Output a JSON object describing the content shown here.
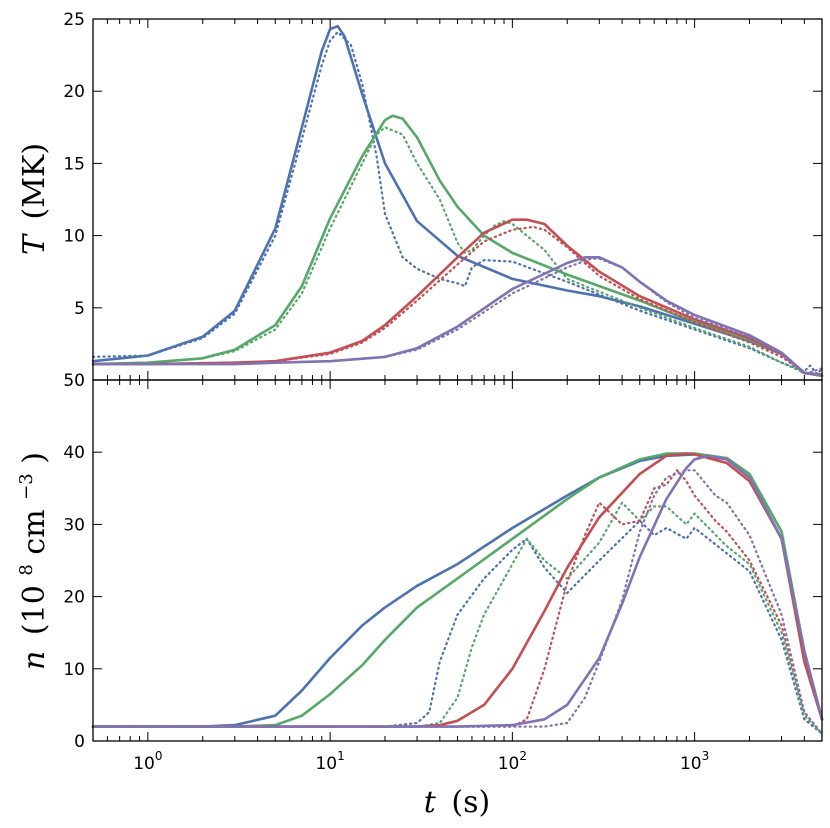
{
  "chart_data": [
    {
      "type": "line",
      "panel": "top",
      "ylabel": {
        "var": "T",
        "unit": "(MK)"
      },
      "xscale": "log",
      "xlim": [
        0.5,
        5000
      ],
      "ylim": [
        0,
        25
      ],
      "yticks": [
        "5",
        "10",
        "15",
        "20",
        "25"
      ],
      "series": [
        {
          "name": "blue solid",
          "color": "#4c72b0",
          "style": "solid",
          "x": [
            0.5,
            1,
            2,
            3,
            5,
            7,
            9,
            10,
            11,
            12,
            15,
            20,
            30,
            50,
            100,
            200,
            300,
            500,
            1000,
            2000,
            3000,
            4000,
            5000
          ],
          "y": [
            1.3,
            1.7,
            3.0,
            4.8,
            10.5,
            17.5,
            22.8,
            24.3,
            24.5,
            23.8,
            19.8,
            15.0,
            11.0,
            8.6,
            7.0,
            6.2,
            5.8,
            5.1,
            3.9,
            2.7,
            1.8,
            0.5,
            0.3
          ]
        },
        {
          "name": "blue dotted",
          "color": "#4c72b0",
          "style": "dotted",
          "x": [
            0.5,
            1,
            2,
            3,
            5,
            7,
            9,
            10,
            11,
            13,
            15,
            18,
            20,
            25,
            30,
            40,
            50,
            55,
            60,
            70,
            100,
            200,
            500,
            1000,
            2000,
            3000,
            4000,
            4300,
            4700,
            5000
          ],
          "y": [
            1.6,
            1.7,
            2.9,
            4.6,
            10.0,
            16.7,
            21.8,
            23.5,
            24.1,
            23.2,
            20.5,
            15.5,
            11.5,
            8.5,
            7.7,
            7.0,
            6.7,
            6.5,
            7.8,
            8.3,
            8.2,
            6.8,
            4.8,
            3.5,
            2.2,
            1.2,
            0.6,
            1.0,
            0.4,
            0.8
          ]
        },
        {
          "name": "green solid",
          "color": "#55a868",
          "style": "solid",
          "x": [
            0.5,
            1,
            2,
            3,
            5,
            7,
            10,
            15,
            20,
            22,
            25,
            30,
            40,
            50,
            70,
            100,
            200,
            500,
            1000,
            2000,
            3000,
            4000,
            5000
          ],
          "y": [
            1.1,
            1.2,
            1.5,
            2.1,
            3.8,
            6.5,
            11.2,
            15.5,
            18.0,
            18.3,
            18.1,
            16.8,
            13.8,
            12.0,
            10.0,
            8.8,
            7.3,
            5.5,
            4.0,
            2.8,
            1.8,
            0.5,
            0.3
          ]
        },
        {
          "name": "green dotted",
          "color": "#55a868",
          "style": "dotted",
          "x": [
            0.5,
            1,
            2,
            3,
            5,
            7,
            10,
            15,
            18,
            20,
            25,
            30,
            40,
            50,
            55,
            60,
            70,
            80,
            90,
            100,
            150,
            200,
            500,
            1000,
            2000,
            3000,
            4000,
            5000
          ],
          "y": [
            1.1,
            1.2,
            1.5,
            2.0,
            3.5,
            6.0,
            10.5,
            15.0,
            17.0,
            17.5,
            17.0,
            15.0,
            12.5,
            9.5,
            8.8,
            9.0,
            10.0,
            10.7,
            11.0,
            10.8,
            9.0,
            7.0,
            5.0,
            3.6,
            2.3,
            1.2,
            0.5,
            0.4
          ]
        },
        {
          "name": "red solid",
          "color": "#c44e52",
          "style": "solid",
          "x": [
            0.5,
            1,
            3,
            5,
            10,
            15,
            20,
            30,
            50,
            70,
            100,
            120,
            150,
            200,
            300,
            500,
            1000,
            2000,
            3000,
            4000,
            5000
          ],
          "y": [
            1.1,
            1.1,
            1.2,
            1.3,
            1.9,
            2.7,
            3.8,
            5.8,
            8.5,
            10.2,
            11.1,
            11.1,
            10.8,
            9.3,
            7.5,
            5.8,
            4.2,
            2.9,
            1.8,
            0.5,
            0.3
          ]
        },
        {
          "name": "red dotted",
          "color": "#c44e52",
          "style": "dotted",
          "x": [
            0.5,
            1,
            3,
            5,
            10,
            15,
            20,
            30,
            50,
            70,
            100,
            130,
            150,
            200,
            300,
            500,
            1000,
            2000,
            3000,
            4000,
            5000
          ],
          "y": [
            1.1,
            1.1,
            1.2,
            1.3,
            1.8,
            2.6,
            3.6,
            5.5,
            8.0,
            9.6,
            10.4,
            10.6,
            10.4,
            9.2,
            7.2,
            5.6,
            4.0,
            2.6,
            1.6,
            0.5,
            0.4
          ]
        },
        {
          "name": "purple solid",
          "color": "#8172b2",
          "style": "solid",
          "x": [
            0.5,
            1,
            3,
            5,
            10,
            20,
            30,
            50,
            100,
            200,
            250,
            300,
            400,
            500,
            700,
            1000,
            2000,
            3000,
            4000,
            5000
          ],
          "y": [
            1.1,
            1.1,
            1.1,
            1.2,
            1.3,
            1.6,
            2.2,
            3.7,
            6.3,
            8.1,
            8.5,
            8.5,
            7.8,
            6.8,
            5.5,
            4.5,
            3.1,
            1.9,
            0.5,
            0.3
          ]
        },
        {
          "name": "purple dotted",
          "color": "#8172b2",
          "style": "dotted",
          "x": [
            0.5,
            1,
            3,
            5,
            10,
            20,
            30,
            50,
            100,
            200,
            270,
            300,
            400,
            500,
            700,
            1000,
            2000,
            3000,
            4000,
            5000
          ],
          "y": [
            1.1,
            1.1,
            1.1,
            1.2,
            1.3,
            1.6,
            2.1,
            3.5,
            6.0,
            7.8,
            8.4,
            8.4,
            7.8,
            6.8,
            5.4,
            4.3,
            3.0,
            1.8,
            0.4,
            0.8
          ]
        }
      ]
    },
    {
      "type": "line",
      "panel": "bottom",
      "ylabel": {
        "var": "n",
        "prefix": "(10",
        "exp1": "8",
        "unit": " cm",
        "exp2": "−3",
        "suffix": ")"
      },
      "xlabel": {
        "var": "t",
        "unit": "(s)"
      },
      "xscale": "log",
      "xlim": [
        0.5,
        5000
      ],
      "ylim": [
        0,
        50
      ],
      "yticks": [
        "0",
        "10",
        "20",
        "30",
        "40",
        "50"
      ],
      "xticks": [
        {
          "base": "10",
          "exp": "0",
          "value": 1
        },
        {
          "base": "10",
          "exp": "1",
          "value": 10
        },
        {
          "base": "10",
          "exp": "2",
          "value": 100
        },
        {
          "base": "10",
          "exp": "3",
          "value": 1000
        }
      ],
      "series": [
        {
          "name": "blue solid",
          "color": "#4c72b0",
          "style": "solid",
          "x": [
            0.5,
            1,
            2,
            3,
            5,
            7,
            10,
            15,
            20,
            30,
            50,
            100,
            200,
            300,
            500,
            700,
            1000,
            1500,
            2000,
            3000,
            4000,
            5000
          ],
          "y": [
            2,
            2,
            2,
            2.2,
            3.5,
            7.0,
            11.5,
            16.0,
            18.5,
            21.5,
            24.5,
            29.5,
            34.0,
            36.5,
            38.8,
            39.5,
            39.7,
            39.0,
            36.5,
            28.0,
            12.0,
            3.0
          ]
        },
        {
          "name": "blue dotted",
          "color": "#4c72b0",
          "style": "dotted",
          "x": [
            0.5,
            5,
            10,
            20,
            30,
            35,
            40,
            50,
            70,
            100,
            120,
            150,
            200,
            300,
            500,
            600,
            700,
            900,
            1000,
            1500,
            2000,
            3000,
            4000,
            5000
          ],
          "y": [
            2,
            2,
            2,
            2,
            2.5,
            4,
            11,
            17.5,
            22.5,
            26.5,
            28.0,
            24.0,
            20.5,
            25.0,
            30.5,
            28.5,
            29.5,
            28.0,
            29.5,
            26.0,
            23.5,
            14.0,
            3.0,
            1.0
          ]
        },
        {
          "name": "green solid",
          "color": "#55a868",
          "style": "solid",
          "x": [
            0.5,
            1,
            3,
            5,
            7,
            10,
            15,
            20,
            30,
            50,
            100,
            200,
            300,
            500,
            700,
            1000,
            1500,
            2000,
            3000,
            4000,
            5000
          ],
          "y": [
            2,
            2,
            2,
            2.2,
            3.5,
            6.5,
            10.5,
            14.0,
            18.5,
            22.5,
            28.0,
            33.5,
            36.5,
            39.0,
            39.8,
            39.8,
            39.2,
            37.0,
            29.0,
            12.5,
            3.0
          ]
        },
        {
          "name": "green dotted",
          "color": "#55a868",
          "style": "dotted",
          "x": [
            0.5,
            10,
            30,
            40,
            50,
            60,
            70,
            100,
            120,
            150,
            200,
            300,
            400,
            500,
            600,
            700,
            900,
            1000,
            1500,
            2000,
            3000,
            4000,
            5000
          ],
          "y": [
            2,
            2,
            2,
            2.5,
            6,
            13,
            17.5,
            24.5,
            28.0,
            25.0,
            22.5,
            27.5,
            33.0,
            30.5,
            32.5,
            32.5,
            30.0,
            31.5,
            27.0,
            24.5,
            15.0,
            3.5,
            1.0
          ]
        },
        {
          "name": "red solid",
          "color": "#c44e52",
          "style": "solid",
          "x": [
            0.5,
            10,
            30,
            40,
            50,
            70,
            100,
            150,
            200,
            300,
            500,
            700,
            900,
            1000,
            1500,
            2000,
            3000,
            4000,
            5000
          ],
          "y": [
            2,
            2,
            2,
            2.2,
            2.8,
            5.0,
            10.0,
            18.0,
            24.0,
            31.0,
            37.0,
            39.5,
            39.8,
            39.7,
            38.5,
            36.0,
            28.0,
            11.0,
            3.0
          ]
        },
        {
          "name": "red dotted",
          "color": "#c44e52",
          "style": "dotted",
          "x": [
            0.5,
            50,
            100,
            120,
            150,
            200,
            250,
            300,
            400,
            500,
            600,
            700,
            800,
            900,
            1000,
            1300,
            1500,
            2000,
            3000,
            4000,
            5000
          ],
          "y": [
            2,
            2,
            2,
            3,
            10,
            22,
            28.5,
            33.0,
            30.0,
            30.5,
            35.0,
            35.5,
            37.5,
            36.0,
            34.0,
            30.5,
            29.0,
            25.0,
            16.0,
            4.0,
            1.0
          ]
        },
        {
          "name": "purple solid",
          "color": "#8172b2",
          "style": "solid",
          "x": [
            0.5,
            50,
            100,
            150,
            200,
            300,
            400,
            500,
            700,
            900,
            1000,
            1200,
            1500,
            2000,
            3000,
            4000,
            5000
          ],
          "y": [
            2,
            2,
            2.2,
            3.0,
            5.0,
            11.5,
            19.0,
            25.5,
            33.5,
            37.8,
            39.0,
            39.5,
            39.0,
            36.5,
            28.0,
            12.5,
            3.0
          ]
        },
        {
          "name": "purple dotted",
          "color": "#8172b2",
          "style": "dotted",
          "x": [
            0.5,
            100,
            150,
            200,
            250,
            300,
            400,
            500,
            600,
            700,
            900,
            1000,
            1300,
            1500,
            2000,
            3000,
            4000,
            5000
          ],
          "y": [
            2,
            2,
            2,
            2.5,
            6,
            11,
            19.5,
            29.0,
            34.0,
            36.5,
            37.5,
            37.5,
            34.0,
            33.0,
            28.5,
            17.5,
            4.0,
            1.0
          ]
        }
      ]
    }
  ]
}
